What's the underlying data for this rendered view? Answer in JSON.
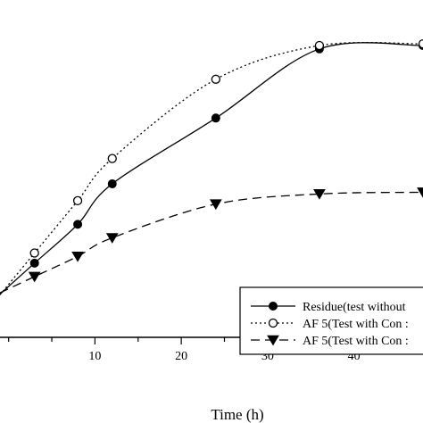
{
  "chart_data": {
    "type": "line",
    "title": "",
    "xlabel": "Time (h)",
    "ylabel": "",
    "xlim": [
      -1,
      48
    ],
    "ylim": [
      0,
      1.0
    ],
    "x_ticks": [
      10,
      20,
      30,
      40
    ],
    "grid": false,
    "legend_position": "bottom-right",
    "series": [
      {
        "name": "Residue(test without",
        "line_style": "solid",
        "marker": "filled-circle",
        "color": "#000000",
        "x": [
          3,
          8,
          12,
          24,
          36,
          48
        ],
        "y": [
          0.22,
          0.335,
          0.455,
          0.65,
          0.855,
          0.865
        ]
      },
      {
        "name": "AF 5(Test with Con :",
        "line_style": "dotted",
        "marker": "open-circle",
        "color": "#000000",
        "x": [
          3,
          8,
          12,
          24,
          36,
          48
        ],
        "y": [
          0.25,
          0.405,
          0.53,
          0.765,
          0.865,
          0.87
        ]
      },
      {
        "name": "AF 5(Test with Con :",
        "line_style": "dashed",
        "marker": "filled-triangle-down",
        "color": "#000000",
        "x": [
          3,
          8,
          12,
          24,
          36,
          48
        ],
        "y": [
          0.18,
          0.24,
          0.295,
          0.395,
          0.425,
          0.43
        ]
      }
    ]
  }
}
